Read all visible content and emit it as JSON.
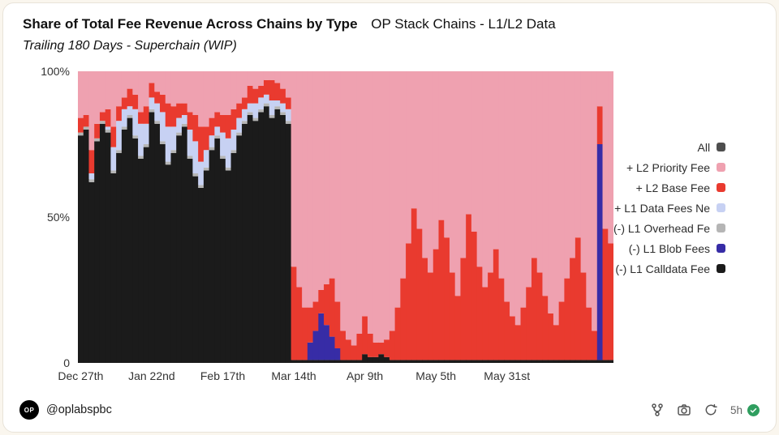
{
  "header": {
    "title_bold": "Share of Total Fee Revenue Across Chains by Type",
    "title_regular": "OP Stack Chains - L1/L2 Data",
    "subtitle": "Trailing 180 Days - Superchain (WIP)"
  },
  "legend": {
    "items": [
      {
        "id": "all",
        "label": "All",
        "color": "#4E4E4E"
      },
      {
        "id": "l2-priority-fee",
        "label": "+ L2 Priority Fee",
        "color": "#EFA1B0"
      },
      {
        "id": "l2-base-fee",
        "label": "+ L2 Base Fee",
        "color": "#E93A2F"
      },
      {
        "id": "l1-data-fees-net",
        "label": "+ L1 Data Fees Ne",
        "color": "#C7D1F3"
      },
      {
        "id": "l1-overhead-fee",
        "label": "(-) L1 Overhead Fe",
        "color": "#B5B5B5"
      },
      {
        "id": "l1-blob-fees",
        "label": "(-) L1 Blob Fees",
        "color": "#372CA6"
      },
      {
        "id": "l1-calldata-fee",
        "label": "(-) L1 Calldata Fee",
        "color": "#1B1B1B"
      }
    ]
  },
  "footer": {
    "avatar_text": "OP",
    "handle": "@oplabspbc",
    "freshness": "5h"
  },
  "chart_data": {
    "type": "bar",
    "stacked": true,
    "normalized": "100% share of total fee revenue, daily bars",
    "title": "Share of Total Fee Revenue Across Chains by Type - OP Stack Chains L1/L2 Data, Trailing 180 Days - Superchain (WIP)",
    "ylim": [
      0,
      1
    ],
    "y_ticks": [
      {
        "label": "100%",
        "frac": 1
      },
      {
        "label": "50%",
        "frac": 0.5
      },
      {
        "label": "0",
        "frac": 0
      }
    ],
    "x_tick_labels": [
      "Dec 27th",
      "Jan 22nd",
      "Feb 17th",
      "Mar 14th",
      "Apr 9th",
      "May 5th",
      "May 31st"
    ],
    "x_tick_indices": [
      0,
      13,
      26,
      39,
      52,
      65,
      78
    ],
    "grid": false,
    "legend_position": "right",
    "series": [
      {
        "name": "(-) L1 Calldata Fee",
        "color": "#1B1B1B",
        "values": [
          0.78,
          0.8,
          0.62,
          0.76,
          0.82,
          0.79,
          0.65,
          0.72,
          0.8,
          0.84,
          0.77,
          0.7,
          0.74,
          0.86,
          0.82,
          0.75,
          0.68,
          0.72,
          0.78,
          0.81,
          0.7,
          0.64,
          0.6,
          0.66,
          0.73,
          0.77,
          0.7,
          0.66,
          0.72,
          0.78,
          0.82,
          0.85,
          0.83,
          0.86,
          0.88,
          0.84,
          0.87,
          0.85,
          0.82,
          0.01,
          0.01,
          0.01,
          0.01,
          0.01,
          0.01,
          0.01,
          0.01,
          0.01,
          0.01,
          0.01,
          0.01,
          0.01,
          0.03,
          0.02,
          0.02,
          0.03,
          0.02,
          0.01,
          0.01,
          0.01,
          0.01,
          0.01,
          0.01,
          0.01,
          0.01,
          0.01,
          0.01,
          0.01,
          0.01,
          0.01,
          0.01,
          0.01,
          0.01,
          0.01,
          0.01,
          0.01,
          0.01,
          0.01,
          0.01,
          0.01,
          0.01,
          0.01,
          0.01,
          0.01,
          0.01,
          0.01,
          0.01,
          0.01,
          0.01,
          0.01,
          0.01,
          0.01,
          0.01,
          0.01,
          0.01,
          0.01,
          0.01,
          0.01
        ]
      },
      {
        "name": "(-) L1 Blob Fees",
        "color": "#372CA6",
        "values": [
          0,
          0,
          0,
          0,
          0,
          0,
          0,
          0,
          0,
          0,
          0,
          0,
          0,
          0,
          0,
          0,
          0,
          0,
          0,
          0,
          0,
          0,
          0,
          0,
          0,
          0,
          0,
          0,
          0,
          0,
          0,
          0,
          0,
          0,
          0,
          0,
          0,
          0,
          0,
          0,
          0,
          0,
          0.06,
          0.1,
          0.16,
          0.12,
          0.08,
          0.04,
          0,
          0,
          0,
          0,
          0,
          0,
          0,
          0,
          0,
          0,
          0,
          0,
          0,
          0,
          0,
          0,
          0,
          0,
          0,
          0,
          0,
          0,
          0,
          0,
          0,
          0,
          0,
          0,
          0,
          0,
          0,
          0,
          0,
          0,
          0,
          0,
          0,
          0,
          0,
          0,
          0,
          0,
          0,
          0,
          0,
          0,
          0,
          0.74,
          0,
          0
        ]
      },
      {
        "name": "(-) L1 Overhead Fee",
        "color": "#B5B5B5",
        "values": [
          0.01,
          0.01,
          0.01,
          0.01,
          0.01,
          0.01,
          0.01,
          0.01,
          0.01,
          0.01,
          0.01,
          0.01,
          0.01,
          0.01,
          0.01,
          0.01,
          0.01,
          0.01,
          0.01,
          0.01,
          0.01,
          0.01,
          0.01,
          0.01,
          0.01,
          0.01,
          0.01,
          0.01,
          0.01,
          0.01,
          0.01,
          0.01,
          0.01,
          0.01,
          0.01,
          0.01,
          0.01,
          0.01,
          0.01,
          0,
          0,
          0,
          0,
          0,
          0,
          0,
          0,
          0,
          0,
          0,
          0,
          0,
          0,
          0,
          0,
          0,
          0,
          0,
          0,
          0,
          0,
          0,
          0,
          0,
          0,
          0,
          0,
          0,
          0,
          0,
          0,
          0,
          0,
          0,
          0,
          0,
          0,
          0,
          0,
          0,
          0,
          0,
          0,
          0,
          0,
          0,
          0,
          0,
          0,
          0,
          0,
          0,
          0,
          0,
          0,
          0,
          0,
          0
        ]
      },
      {
        "name": "+ L1 Data Fees Net",
        "color": "#C7D1F3",
        "values": [
          0,
          0,
          0.02,
          0,
          0,
          0.01,
          0.08,
          0.1,
          0.06,
          0.03,
          0.09,
          0.11,
          0.07,
          0.04,
          0.06,
          0.1,
          0.12,
          0.08,
          0.05,
          0.03,
          0.09,
          0.11,
          0.08,
          0.06,
          0.04,
          0.03,
          0.08,
          0.1,
          0.07,
          0.05,
          0.04,
          0.03,
          0.05,
          0.04,
          0.03,
          0.05,
          0.02,
          0.03,
          0.04,
          0,
          0,
          0,
          0,
          0,
          0,
          0,
          0,
          0,
          0,
          0,
          0,
          0,
          0,
          0,
          0,
          0,
          0,
          0,
          0,
          0,
          0,
          0,
          0,
          0,
          0,
          0,
          0,
          0,
          0,
          0,
          0,
          0,
          0,
          0,
          0,
          0,
          0,
          0,
          0,
          0,
          0,
          0,
          0,
          0,
          0,
          0,
          0,
          0,
          0,
          0,
          0,
          0,
          0,
          0,
          0,
          0,
          0,
          0
        ]
      },
      {
        "name": "+ L2 Base Fee",
        "color": "#E93A2F",
        "values": [
          0.05,
          0.04,
          0.08,
          0.05,
          0.03,
          0.06,
          0.07,
          0.05,
          0.04,
          0.06,
          0.05,
          0.04,
          0.06,
          0.05,
          0.04,
          0.06,
          0.08,
          0.07,
          0.05,
          0.04,
          0.06,
          0.09,
          0.12,
          0.08,
          0.06,
          0.05,
          0.06,
          0.08,
          0.07,
          0.05,
          0.04,
          0.06,
          0.05,
          0.04,
          0.05,
          0.07,
          0.06,
          0.05,
          0.04,
          0.32,
          0.25,
          0.18,
          0.12,
          0.1,
          0.08,
          0.14,
          0.2,
          0.16,
          0.1,
          0.07,
          0.05,
          0.09,
          0.13,
          0.08,
          0.05,
          0.04,
          0.06,
          0.1,
          0.18,
          0.28,
          0.4,
          0.52,
          0.45,
          0.35,
          0.3,
          0.38,
          0.48,
          0.42,
          0.3,
          0.22,
          0.35,
          0.5,
          0.44,
          0.32,
          0.25,
          0.3,
          0.38,
          0.28,
          0.2,
          0.15,
          0.12,
          0.18,
          0.25,
          0.35,
          0.3,
          0.22,
          0.16,
          0.12,
          0.2,
          0.28,
          0.35,
          0.42,
          0.3,
          0.18,
          0.1,
          0.13,
          0.45,
          0.4
        ]
      },
      {
        "name": "+ L2 Priority Fee",
        "color": "#EFA1B0",
        "values": [
          0.16,
          0.15,
          0.27,
          0.18,
          0.14,
          0.13,
          0.19,
          0.12,
          0.09,
          0.06,
          0.08,
          0.14,
          0.12,
          0.04,
          0.07,
          0.08,
          0.11,
          0.12,
          0.11,
          0.11,
          0.14,
          0.15,
          0.19,
          0.19,
          0.16,
          0.14,
          0.15,
          0.15,
          0.13,
          0.11,
          0.09,
          0.05,
          0.06,
          0.05,
          0.03,
          0.03,
          0.04,
          0.06,
          0.09,
          0.67,
          0.74,
          0.81,
          0.81,
          0.79,
          0.75,
          0.73,
          0.71,
          0.79,
          0.89,
          0.92,
          0.94,
          0.9,
          0.84,
          0.9,
          0.93,
          0.93,
          0.92,
          0.89,
          0.81,
          0.71,
          0.59,
          0.47,
          0.54,
          0.64,
          0.69,
          0.61,
          0.51,
          0.57,
          0.69,
          0.77,
          0.64,
          0.49,
          0.55,
          0.67,
          0.74,
          0.69,
          0.61,
          0.71,
          0.79,
          0.84,
          0.87,
          0.81,
          0.74,
          0.64,
          0.69,
          0.77,
          0.83,
          0.87,
          0.79,
          0.71,
          0.64,
          0.57,
          0.69,
          0.81,
          0.89,
          0.12,
          0.54,
          0.59
        ]
      }
    ]
  }
}
